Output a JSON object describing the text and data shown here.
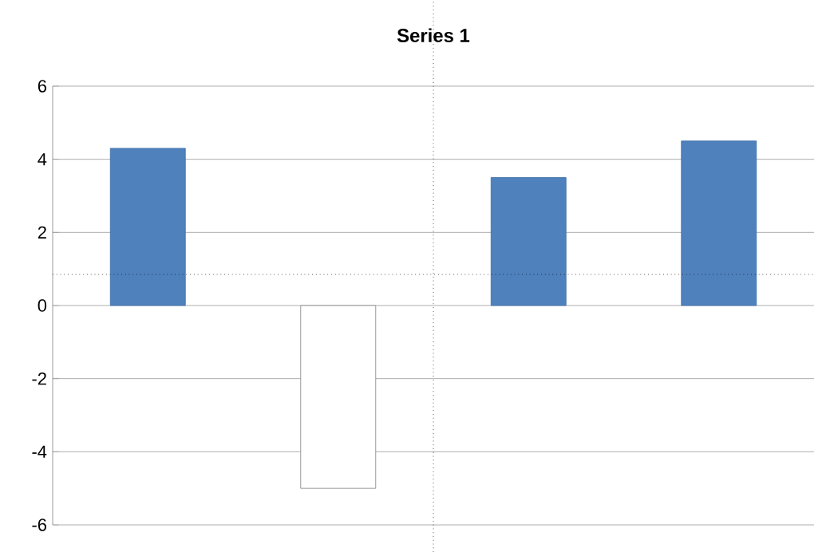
{
  "chart_data": {
    "type": "bar",
    "title": "Series 1",
    "categories": [
      null,
      null,
      null,
      null
    ],
    "values": [
      4.3,
      -5,
      3.5,
      4.5
    ],
    "colors": [
      "#4f81bd",
      "#ffffff",
      "#4f81bd",
      "#4f81bd"
    ],
    "ylim": [
      -6,
      6
    ],
    "yticks": [
      -6,
      -4,
      -2,
      0,
      2,
      4,
      6
    ],
    "grid": "y",
    "ref_lines": [
      {
        "axis": "y",
        "value": 0.85,
        "line_style": "dotted",
        "color": "#000000"
      }
    ]
  }
}
